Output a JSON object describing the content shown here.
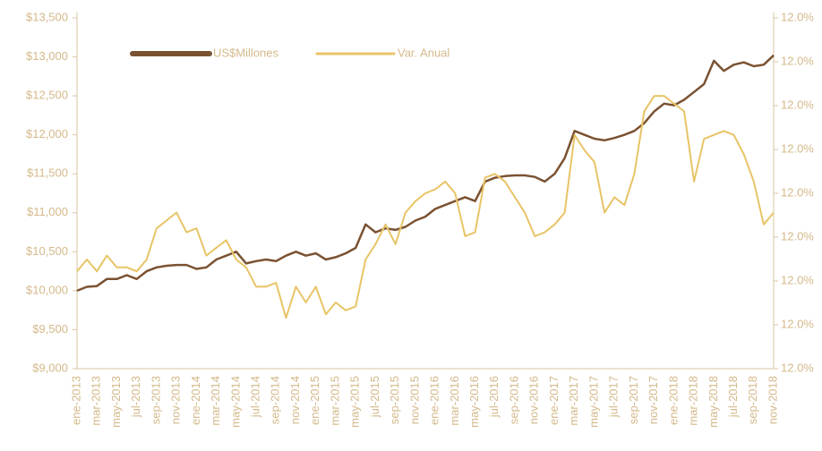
{
  "chart_data": {
    "type": "line",
    "categories": [
      "ene-2013",
      null,
      "mar-2013",
      null,
      "may-2013",
      null,
      "jul-2013",
      null,
      "sep-2013",
      null,
      "nov-2013",
      null,
      "ene-2014",
      null,
      "mar-2014",
      null,
      "may-2014",
      null,
      "jul-2014",
      null,
      "sep-2014",
      null,
      "nov-2014",
      null,
      "ene-2015",
      null,
      "mar-2015",
      null,
      "may-2015",
      null,
      "jul-2015",
      null,
      "sep-2015",
      null,
      "nov-2015",
      null,
      "ene-2016",
      null,
      "mar-2016",
      null,
      "may-2016",
      null,
      "jul-2016",
      null,
      "sep-2016",
      null,
      "nov-2016",
      null,
      "ene-2017",
      null,
      "mar-2017",
      null,
      "may-2017",
      null,
      "jul-2017",
      null,
      "sep-2017",
      null,
      "nov-2017",
      null,
      "ene-2018",
      null,
      "mar-2018",
      null,
      "may-2018",
      null,
      "jul-2018",
      null,
      "sep-2018",
      null,
      "nov-2018"
    ],
    "series": [
      {
        "name": "US$Millones",
        "color": "#7a5232",
        "values": [
          10000,
          10050,
          10060,
          10150,
          10150,
          10200,
          10150,
          10250,
          10300,
          10320,
          10330,
          10330,
          10280,
          10300,
          10400,
          10450,
          10500,
          10350,
          10380,
          10400,
          10380,
          10450,
          10500,
          10450,
          10480,
          10400,
          10430,
          10480,
          10550,
          10850,
          10750,
          10800,
          10780,
          10820,
          10900,
          10950,
          11050,
          11100,
          11150,
          11200,
          11150,
          11400,
          11450,
          11470,
          11480,
          11480,
          11460,
          11400,
          11500,
          11700,
          12050,
          12000,
          11950,
          11930,
          11960,
          12000,
          12050,
          12150,
          12300,
          12400,
          12380,
          12450,
          12550,
          12650,
          12950,
          12820,
          12900,
          12930,
          12880,
          12900,
          13020
        ]
      },
      {
        "name": "Var. Anual",
        "color": "#e8c466",
        "axis": "y2",
        "values": [
          11.9822,
          11.9849,
          11.9822,
          11.9858,
          11.9831,
          11.9831,
          11.9822,
          11.9849,
          11.992,
          11.9938,
          11.9956,
          11.9911,
          11.992,
          11.9858,
          11.9876,
          11.9893,
          11.9849,
          11.9831,
          11.9787,
          11.9787,
          11.9796,
          11.9716,
          11.9787,
          11.9751,
          11.9787,
          11.9724,
          11.9751,
          11.9733,
          11.9742,
          11.9849,
          11.9884,
          11.9929,
          11.9884,
          11.9956,
          11.9982,
          12.0,
          12.0009,
          12.0027,
          12.0,
          11.9902,
          11.9911,
          12.0036,
          12.0044,
          12.0027,
          11.9991,
          11.9956,
          11.9902,
          11.9911,
          11.9929,
          11.9956,
          12.0133,
          12.0098,
          12.0071,
          11.9956,
          11.9991,
          11.9973,
          12.0044,
          12.0187,
          12.0222,
          12.0222,
          12.0204,
          12.0187,
          12.0027,
          12.0124,
          12.0133,
          12.0142,
          12.0133,
          12.0089,
          12.0027,
          11.9929,
          11.9956
        ]
      }
    ],
    "ylim": [
      9000,
      13500
    ],
    "yticks": [
      {
        "value": 9000,
        "label": "$9,000"
      },
      {
        "value": 9500,
        "label": "$9,500"
      },
      {
        "value": 10000,
        "label": "$10,000"
      },
      {
        "value": 10500,
        "label": "$10,500"
      },
      {
        "value": 11000,
        "label": "$11,000"
      },
      {
        "value": 11500,
        "label": "$11,500"
      },
      {
        "value": 12000,
        "label": "$12,000"
      },
      {
        "value": 12500,
        "label": "$12,500"
      },
      {
        "value": 13000,
        "label": "$13,000"
      },
      {
        "value": 13500,
        "label": "$13,500"
      }
    ],
    "y2lim": [
      11.96,
      12.04
    ],
    "y2ticks": [
      {
        "value": 11.96,
        "label": "12.0%"
      },
      {
        "value": 11.97,
        "label": "12.0%"
      },
      {
        "value": 11.98,
        "label": "12.0%"
      },
      {
        "value": 11.99,
        "label": "12.0%"
      },
      {
        "value": 12.0,
        "label": "12.0%"
      },
      {
        "value": 12.01,
        "label": "12.0%"
      },
      {
        "value": 12.02,
        "label": "12.0%"
      },
      {
        "value": 12.03,
        "label": "12.0%"
      },
      {
        "value": 12.04,
        "label": "12.0%"
      }
    ],
    "legend": "top-left"
  }
}
